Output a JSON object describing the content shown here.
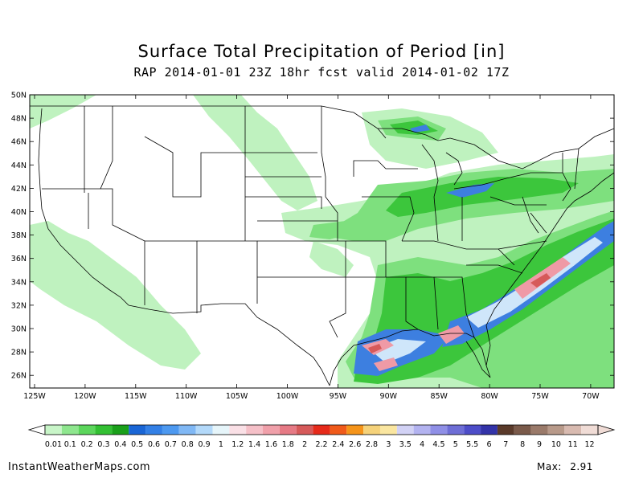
{
  "title": "Surface Total Precipitation of Period [in]",
  "subtitle": "RAP 2014-01-01 23Z 18hr fcst valid 2014-01-02 17Z",
  "lat_labels": [
    "50N",
    "48N",
    "46N",
    "44N",
    "42N",
    "40N",
    "38N",
    "36N",
    "34N",
    "32N",
    "30N",
    "28N",
    "26N"
  ],
  "lon_labels": [
    "125W",
    "120W",
    "115W",
    "110W",
    "105W",
    "100W",
    "95W",
    "90W",
    "85W",
    "80W",
    "75W",
    "70W"
  ],
  "colorbar": {
    "labels": [
      "0.01",
      "0.1",
      "0.2",
      "0.3",
      "0.4",
      "0.5",
      "0.6",
      "0.7",
      "0.8",
      "0.9",
      "1",
      "1.2",
      "1.4",
      "1.6",
      "1.8",
      "2",
      "2.2",
      "2.4",
      "2.6",
      "2.8",
      "3",
      "3.5",
      "4",
      "4.5",
      "5",
      "5.5",
      "6",
      "7",
      "8",
      "9",
      "10",
      "11",
      "12"
    ],
    "colors": [
      "#c8f5c8",
      "#8ee68e",
      "#5cd65c",
      "#33c033",
      "#1aa01a",
      "#1a66d6",
      "#3380e6",
      "#4d99f0",
      "#80b8f5",
      "#b3d9fa",
      "#e6f5fa",
      "#fae0e6",
      "#f5c0c8",
      "#f0a0aa",
      "#e67a85",
      "#d65a5a",
      "#e62a1a",
      "#f05a1a",
      "#f5941a",
      "#f5d27a",
      "#fae6a0",
      "#d2d2f5",
      "#b3b3f0",
      "#8f8fe6",
      "#6e6ed6",
      "#4d4dc8",
      "#3333a8",
      "#5a3a2a",
      "#7a5a4a",
      "#9a7a6a",
      "#b89a8a",
      "#d8bab0",
      "#f0dcd6"
    ]
  },
  "footer": {
    "site": "InstantWeatherMaps.com",
    "max_label": "Max:",
    "max_value": "2.91"
  },
  "legend_colors": {
    "light_green": "#a8efa8",
    "green": "#5cd65c",
    "dark_green": "#1aa01a",
    "blue": "#3380e6",
    "light_blue": "#b3d9fa",
    "pink": "#f0a0aa",
    "red": "#d65a5a"
  }
}
